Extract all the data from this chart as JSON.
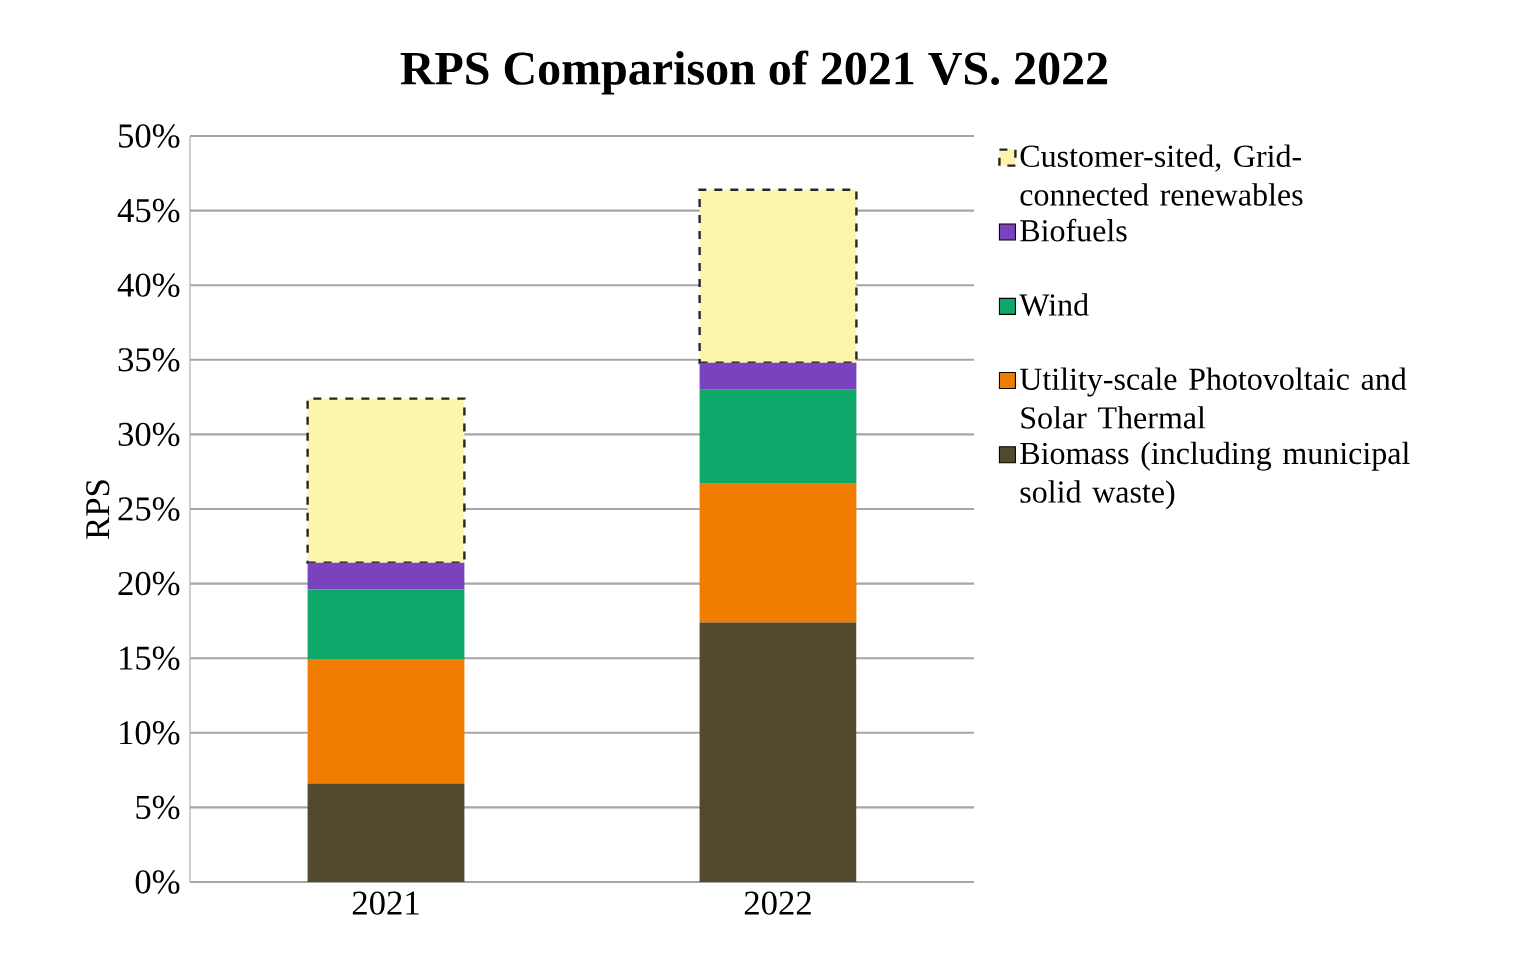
{
  "chart_data": {
    "type": "bar",
    "stacked": true,
    "title": "RPS Comparison of 2021 VS. 2022",
    "ylabel": "RPS",
    "categories": [
      "2021",
      "2022"
    ],
    "series": [
      {
        "name": "Biomass (including municipal solid waste)",
        "color": "#52492f",
        "values": [
          6.6,
          17.4
        ]
      },
      {
        "name": "Utility-scale Photovoltaic and Solar Thermal",
        "color": "#f07c00",
        "values": [
          8.3,
          9.3
        ]
      },
      {
        "name": "Wind",
        "color": "#10a86a",
        "values": [
          4.7,
          6.3
        ]
      },
      {
        "name": "Biofuels",
        "color": "#7b42bd",
        "values": [
          1.8,
          1.8
        ]
      },
      {
        "name": "Customer-sited, Grid-connected renewables",
        "color": "#fbf6a9",
        "values": [
          11.0,
          11.6
        ],
        "line_style": "dashed"
      }
    ],
    "ylim": [
      0,
      50
    ],
    "yticks": [
      {
        "value": 0,
        "label": "0%"
      },
      {
        "value": 5,
        "label": "5%"
      },
      {
        "value": 10,
        "label": "10%"
      },
      {
        "value": 15,
        "label": "15%"
      },
      {
        "value": 20,
        "label": "20%"
      },
      {
        "value": 25,
        "label": "25%"
      },
      {
        "value": 30,
        "label": "30%"
      },
      {
        "value": 35,
        "label": "35%"
      },
      {
        "value": 40,
        "label": "40%"
      },
      {
        "value": 45,
        "label": "45%"
      },
      {
        "value": 50,
        "label": "50%"
      }
    ],
    "grid": "y",
    "legend": "right"
  }
}
